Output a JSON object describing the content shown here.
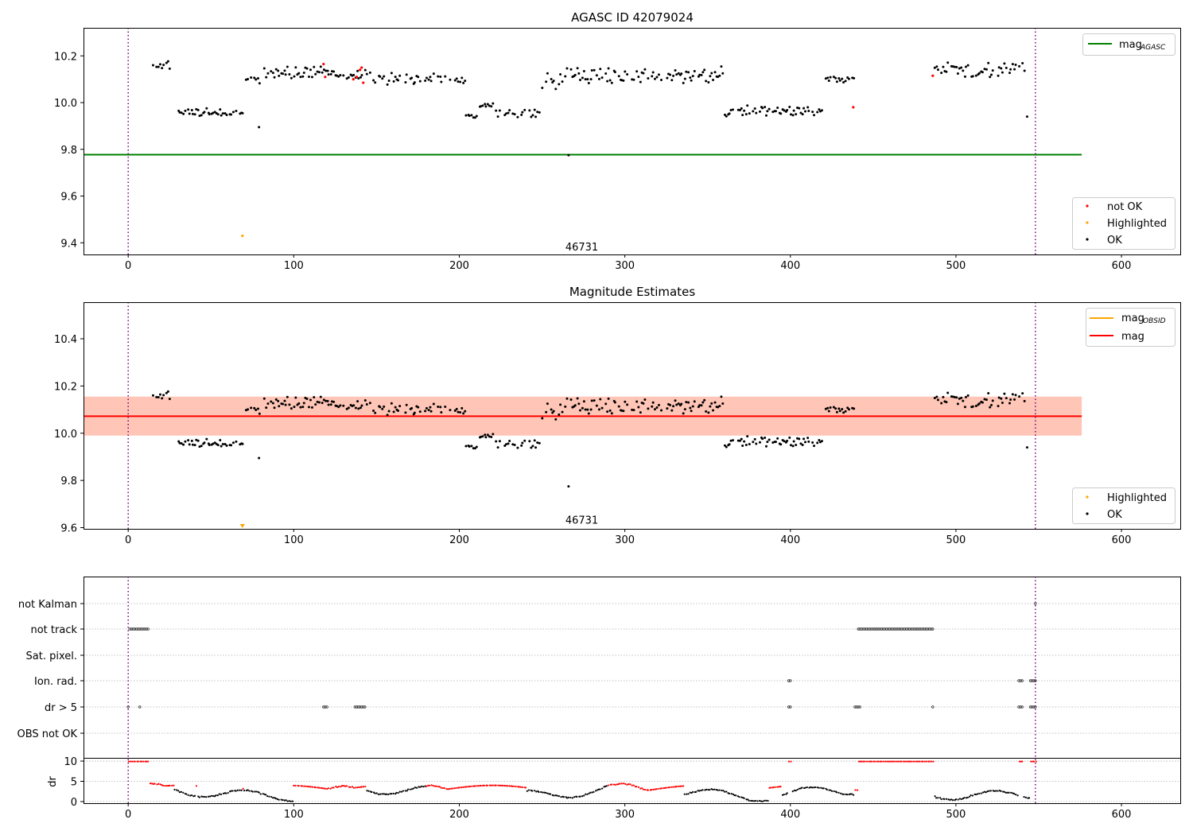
{
  "colors": {
    "ok": "#000000",
    "not_ok": "#ff0000",
    "highlighted": "#ffa500",
    "agasc": "#008000",
    "obsid": "#ffa500",
    "mag": "#ff0000",
    "band": "#ffa07a",
    "band_outer": "#ffc0cb",
    "vline": "#800080",
    "grid": "#b0b0b0"
  },
  "chart_data": [
    {
      "type": "scatter",
      "title": "AGASC ID 42079024",
      "xlim": [
        -27,
        636
      ],
      "ylim": [
        9.35,
        10.32
      ],
      "xticks": [
        "0",
        "100",
        "200",
        "300",
        "400",
        "500",
        "600"
      ],
      "xtick_values": [
        0,
        100,
        200,
        300,
        400,
        500,
        600
      ],
      "yticks": [
        "9.4",
        "9.6",
        "9.8",
        "10.0",
        "10.2"
      ],
      "ytick_values": [
        9.4,
        9.6,
        9.8,
        10.0,
        10.2
      ],
      "annotation": {
        "text": "46731",
        "x": 274,
        "y": 9.38
      },
      "vlines": [
        0,
        548
      ],
      "hline": {
        "y": 9.777,
        "x0": -27,
        "x1": 576
      },
      "legend_lines": [
        {
          "label": "mag",
          "sub": "AGASC"
        }
      ],
      "legend_points": [
        {
          "label": "not OK"
        },
        {
          "label": "Highlighted"
        },
        {
          "label": "OK"
        }
      ],
      "not_ok_points": [
        [
          118,
          10.165
        ],
        [
          119,
          10.11
        ],
        [
          136,
          10.1
        ],
        [
          138,
          10.11
        ],
        [
          140,
          10.14
        ],
        [
          141,
          10.15
        ],
        [
          142,
          10.085
        ],
        [
          438,
          9.98
        ],
        [
          486,
          10.115
        ]
      ],
      "highlighted_points": [
        [
          69,
          9.43
        ]
      ],
      "outliers": [
        [
          79,
          9.895
        ],
        [
          266,
          9.775
        ],
        [
          543,
          9.94
        ]
      ]
    },
    {
      "type": "scatter",
      "title": "Magnitude Estimates",
      "xlim": [
        -27,
        636
      ],
      "ylim": [
        9.595,
        10.555
      ],
      "xticks": [
        "0",
        "100",
        "200",
        "300",
        "400",
        "500",
        "600"
      ],
      "xtick_values": [
        0,
        100,
        200,
        300,
        400,
        500,
        600
      ],
      "yticks": [
        "9.6",
        "9.8",
        "10.0",
        "10.2",
        "10.4"
      ],
      "ytick_values": [
        9.6,
        9.8,
        10.0,
        10.2,
        10.4
      ],
      "annotation": {
        "text": "46731",
        "x": 274,
        "y": 9.63
      },
      "vlines": [
        0,
        548
      ],
      "mag_line": 10.072,
      "band_outer": [
        9.99,
        10.155
      ],
      "band_inner": [
        9.99,
        10.155
      ],
      "band_x": [
        -27,
        576
      ],
      "legend_lines": [
        {
          "label": "mag",
          "sub": "OBSID"
        },
        {
          "label": "mag",
          "sub": ""
        }
      ],
      "legend_points": [
        {
          "label": "Highlighted"
        },
        {
          "label": "OK"
        }
      ],
      "highlighted_points": [
        [
          69,
          9.605
        ]
      ],
      "outliers": [
        [
          79,
          9.895
        ],
        [
          266,
          9.775
        ],
        [
          543,
          9.94
        ]
      ]
    },
    {
      "type": "scatter",
      "title": "",
      "xlim": [
        -27,
        636
      ],
      "xticks": [
        "0",
        "100",
        "200",
        "300",
        "400",
        "500",
        "600"
      ],
      "xtick_values": [
        0,
        100,
        200,
        300,
        400,
        500,
        600
      ],
      "flag_labels": [
        "not Kalman",
        "not track",
        "Sat. pixel.",
        "Ion. rad.",
        "dr > 5",
        "OBS not OK"
      ],
      "flag_ranges": {
        "not Kalman": [
          [
            548,
            548
          ]
        ],
        "not track": [
          [
            1,
            12
          ],
          [
            441,
            486
          ]
        ],
        "Sat. pixel.": [],
        "Ion. rad.": [
          [
            399,
            400
          ],
          [
            538,
            540
          ],
          [
            545,
            548
          ]
        ],
        "dr > 5": [
          [
            0,
            0
          ],
          [
            7,
            7
          ],
          [
            118,
            120
          ],
          [
            137,
            143
          ],
          [
            399,
            400
          ],
          [
            439,
            442
          ],
          [
            486,
            486
          ],
          [
            538,
            540
          ],
          [
            545,
            548
          ]
        ],
        "OBS not OK": []
      },
      "dr_ylabel": "dr",
      "dr_yticks": [
        "0",
        "5",
        "10"
      ],
      "dr_ytick_values": [
        0,
        5,
        10
      ],
      "dr_ylim": [
        -0.4,
        10.6
      ],
      "dr_red_ranges": [
        [
          0,
          12
        ],
        [
          13,
          27
        ],
        [
          41,
          41
        ],
        [
          69,
          69
        ],
        [
          100,
          143
        ],
        [
          180,
          240
        ],
        [
          290,
          335
        ],
        [
          387,
          394
        ],
        [
          399,
          400
        ],
        [
          439,
          486
        ],
        [
          538,
          540
        ],
        [
          545,
          548
        ]
      ],
      "dr_high_ranges": [
        [
          0,
          12
        ],
        [
          399,
          400
        ],
        [
          441,
          486
        ],
        [
          538,
          540
        ],
        [
          545,
          548
        ]
      ]
    }
  ]
}
